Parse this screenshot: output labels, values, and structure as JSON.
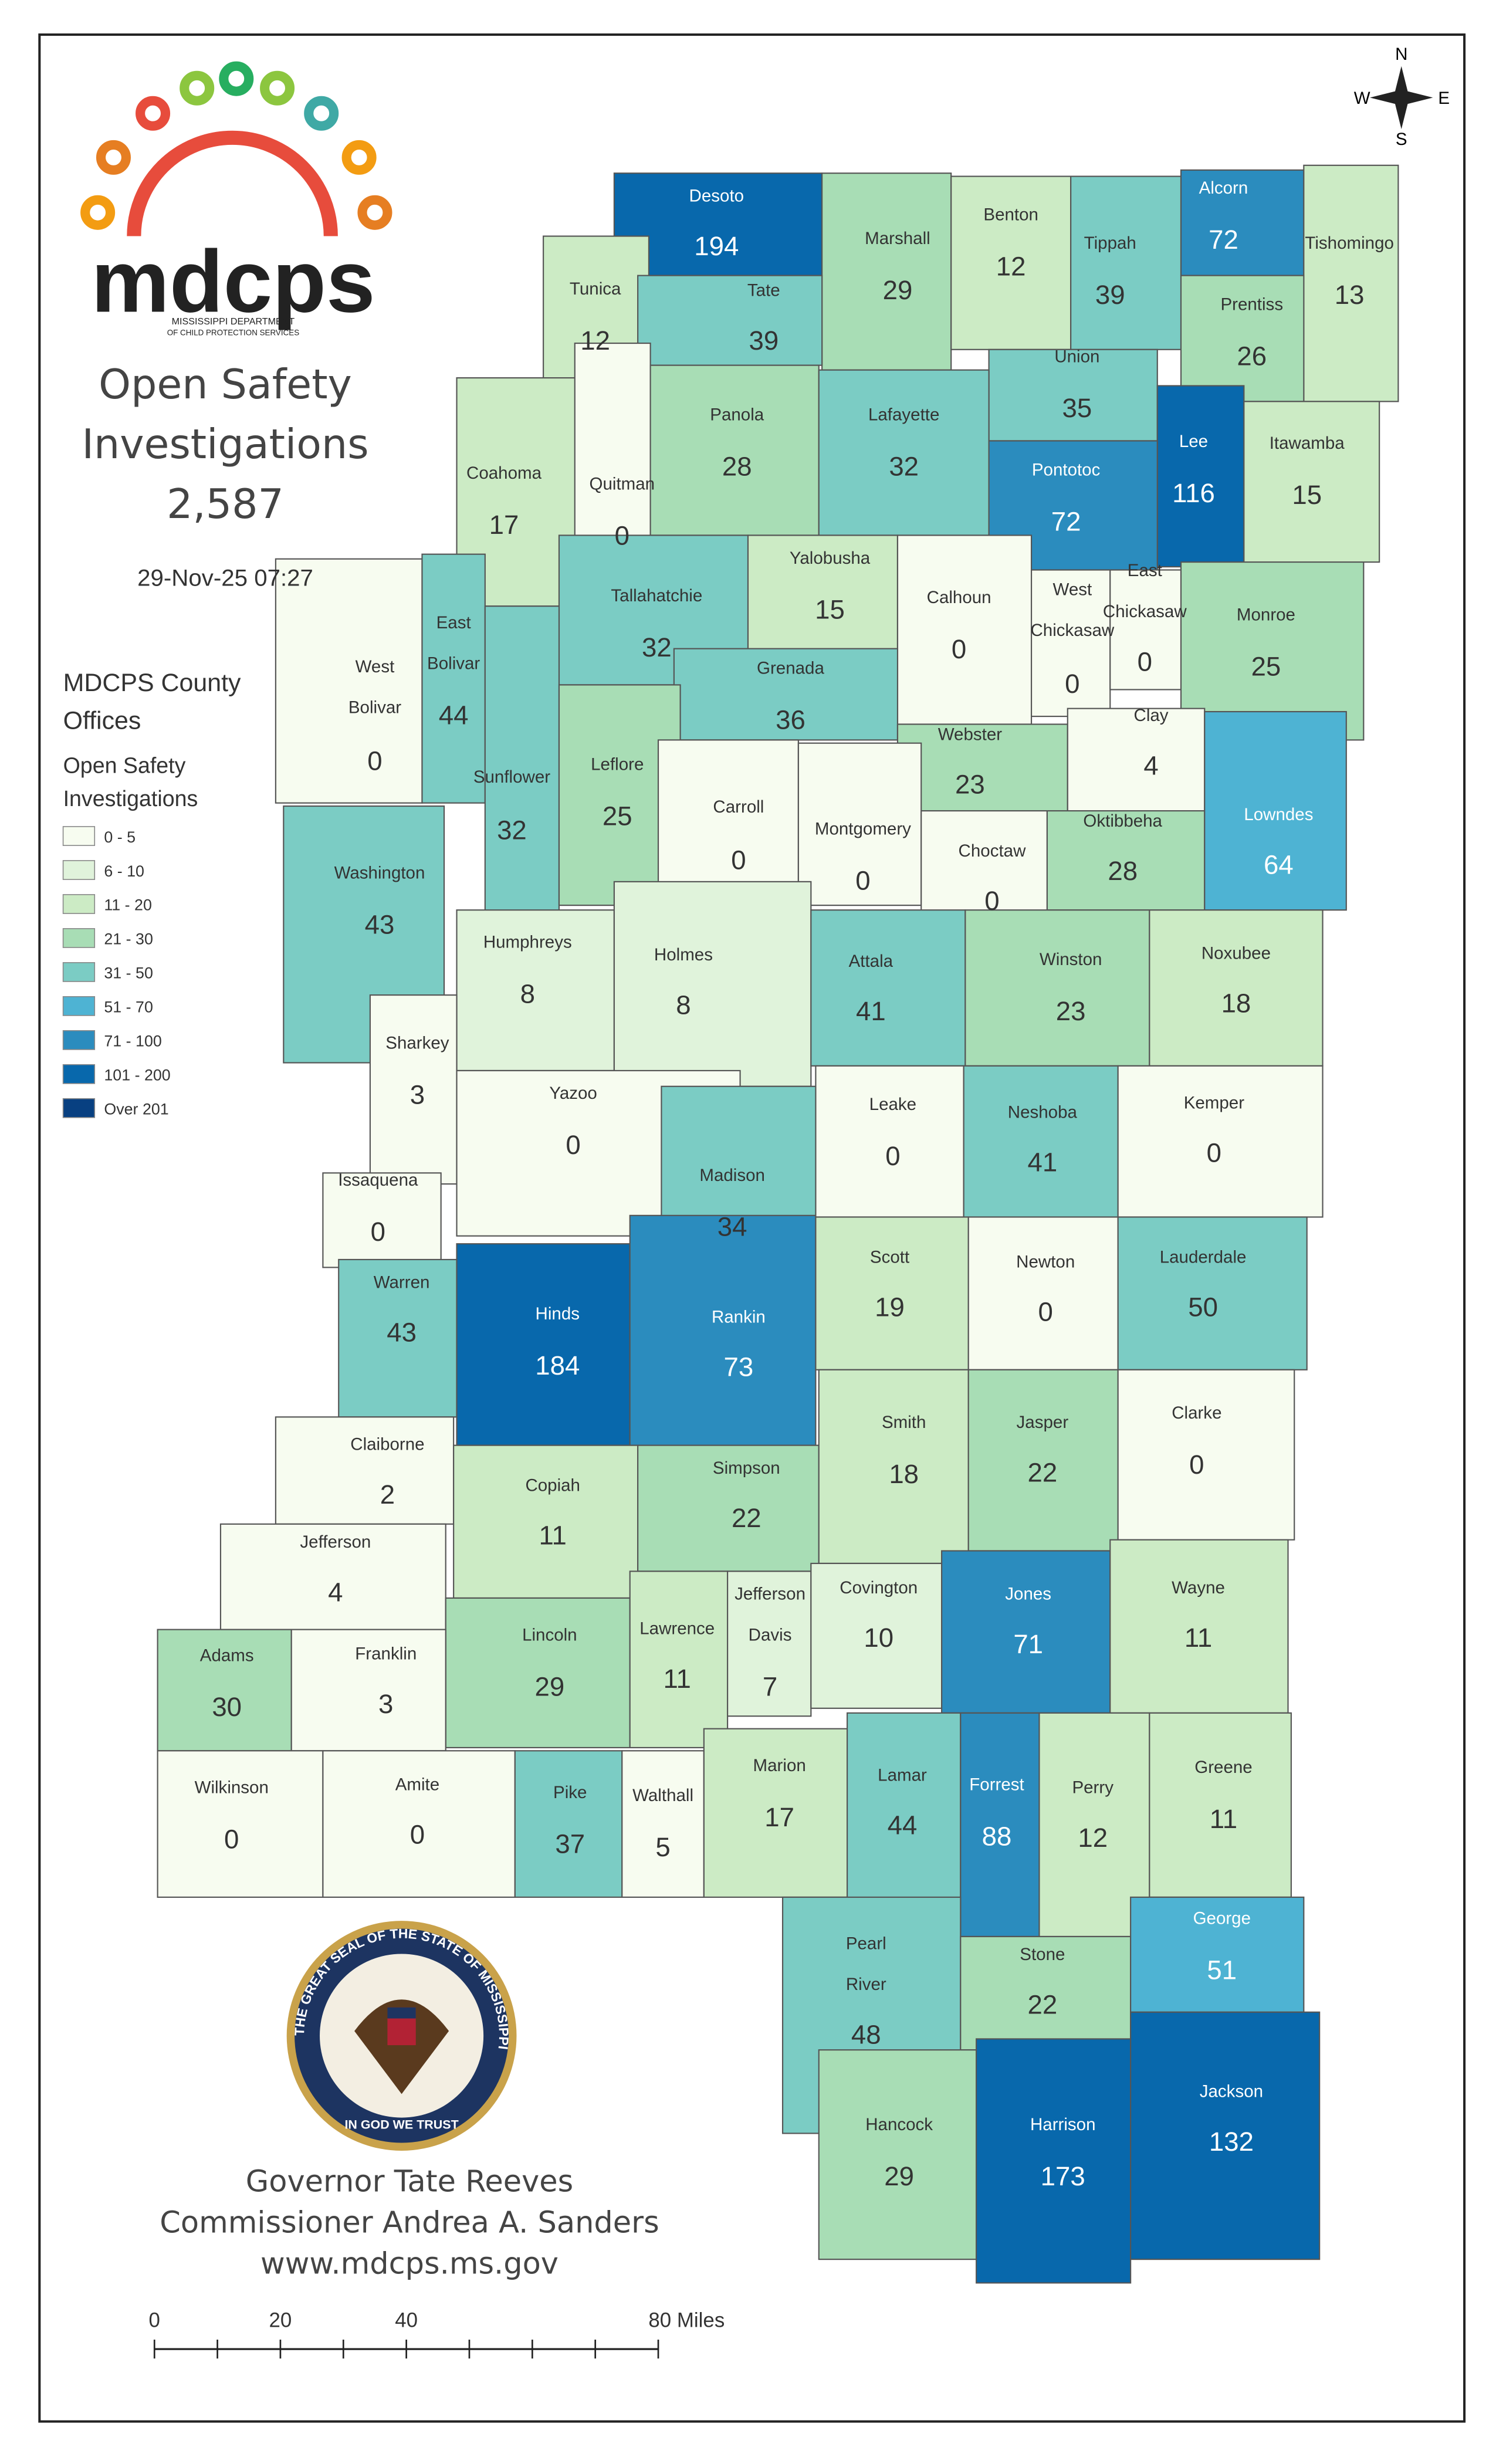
{
  "header": {
    "logo_text": "mdcps",
    "logo_sub": [
      "MISSISSIPPI DEPARTMENT",
      "OF CHILD PROTECTION SERVICES"
    ],
    "title_lines": [
      "Open Safety",
      "Investigations"
    ],
    "total": "2,587",
    "timestamp": "29-Nov-25 07:27"
  },
  "legend": {
    "heading_lines": [
      "MDCPS County",
      "Offices"
    ],
    "subheading_lines": [
      "Open Safety",
      "Investigations"
    ],
    "items": [
      {
        "label": "0 - 5",
        "color": "#f7fcf0"
      },
      {
        "label": "6 - 10",
        "color": "#e0f3db"
      },
      {
        "label": "11 - 20",
        "color": "#ccebc5"
      },
      {
        "label": "21 - 30",
        "color": "#a8ddb5"
      },
      {
        "label": "31 - 50",
        "color": "#7bccc4"
      },
      {
        "label": "51 - 70",
        "color": "#4eb3d3"
      },
      {
        "label": "71 - 100",
        "color": "#2b8cbe"
      },
      {
        "label": "101 - 200",
        "color": "#0868ac"
      },
      {
        "label": "Over 201",
        "color": "#084081"
      }
    ]
  },
  "compass": {
    "n": "N",
    "e": "E",
    "s": "S",
    "w": "W"
  },
  "counties": [
    {
      "name": [
        "Desoto"
      ],
      "count": 194
    },
    {
      "name": [
        "Tunica"
      ],
      "count": 12
    },
    {
      "name": [
        "Marshall"
      ],
      "count": 29
    },
    {
      "name": [
        "Benton"
      ],
      "count": 12
    },
    {
      "name": [
        "Tippah"
      ],
      "count": 39
    },
    {
      "name": [
        "Alcorn"
      ],
      "count": 72
    },
    {
      "name": [
        "Tishomingo"
      ],
      "count": 13
    },
    {
      "name": [
        "Tate"
      ],
      "count": 39
    },
    {
      "name": [
        "Prentiss"
      ],
      "count": 26
    },
    {
      "name": [
        "Union"
      ],
      "count": 35
    },
    {
      "name": [
        "Coahoma"
      ],
      "count": 17
    },
    {
      "name": [
        "Quitman"
      ],
      "count": 0
    },
    {
      "name": [
        "Panola"
      ],
      "count": 28
    },
    {
      "name": [
        "Lafayette"
      ],
      "count": 32
    },
    {
      "name": [
        "Lee"
      ],
      "count": 116
    },
    {
      "name": [
        "Itawamba"
      ],
      "count": 15
    },
    {
      "name": [
        "Pontotoc"
      ],
      "count": 72
    },
    {
      "name": [
        "Tallahatchie"
      ],
      "count": 32
    },
    {
      "name": [
        "Yalobusha"
      ],
      "count": 15
    },
    {
      "name": [
        "Calhoun"
      ],
      "count": 0
    },
    {
      "name": [
        "West",
        "Chickasaw"
      ],
      "count": 0
    },
    {
      "name": [
        "East",
        "Chickasaw"
      ],
      "count": 0
    },
    {
      "name": [
        "Monroe"
      ],
      "count": 25
    },
    {
      "name": [
        "West",
        "Bolivar"
      ],
      "count": 0
    },
    {
      "name": [
        "East",
        "Bolivar"
      ],
      "count": 44
    },
    {
      "name": [
        "Sunflower"
      ],
      "count": 32
    },
    {
      "name": [
        "Grenada"
      ],
      "count": 36
    },
    {
      "name": [
        "Leflore"
      ],
      "count": 25
    },
    {
      "name": [
        "Webster"
      ],
      "count": 23
    },
    {
      "name": [
        "Clay"
      ],
      "count": 4
    },
    {
      "name": [
        "Carroll"
      ],
      "count": 0
    },
    {
      "name": [
        "Montgomery"
      ],
      "count": 0
    },
    {
      "name": [
        "Choctaw"
      ],
      "count": 0
    },
    {
      "name": [
        "Oktibbeha"
      ],
      "count": 28
    },
    {
      "name": [
        "Lowndes"
      ],
      "count": 64
    },
    {
      "name": [
        "Washington"
      ],
      "count": 43
    },
    {
      "name": [
        "Humphreys"
      ],
      "count": 8
    },
    {
      "name": [
        "Holmes"
      ],
      "count": 8
    },
    {
      "name": [
        "Attala"
      ],
      "count": 41
    },
    {
      "name": [
        "Winston"
      ],
      "count": 23
    },
    {
      "name": [
        "Noxubee"
      ],
      "count": 18
    },
    {
      "name": [
        "Sharkey"
      ],
      "count": 3
    },
    {
      "name": [
        "Yazoo"
      ],
      "count": 0
    },
    {
      "name": [
        "Leake"
      ],
      "count": 0
    },
    {
      "name": [
        "Neshoba"
      ],
      "count": 41
    },
    {
      "name": [
        "Kemper"
      ],
      "count": 0
    },
    {
      "name": [
        "Issaquena"
      ],
      "count": 0
    },
    {
      "name": [
        "Madison"
      ],
      "count": 34
    },
    {
      "name": [
        "Warren"
      ],
      "count": 43
    },
    {
      "name": [
        "Hinds"
      ],
      "count": 184
    },
    {
      "name": [
        "Rankin"
      ],
      "count": 73
    },
    {
      "name": [
        "Scott"
      ],
      "count": 19
    },
    {
      "name": [
        "Newton"
      ],
      "count": 0
    },
    {
      "name": [
        "Lauderdale"
      ],
      "count": 50
    },
    {
      "name": [
        "Claiborne"
      ],
      "count": 2
    },
    {
      "name": [
        "Copiah"
      ],
      "count": 11
    },
    {
      "name": [
        "Simpson"
      ],
      "count": 22
    },
    {
      "name": [
        "Smith"
      ],
      "count": 18
    },
    {
      "name": [
        "Jasper"
      ],
      "count": 22
    },
    {
      "name": [
        "Clarke"
      ],
      "count": 0
    },
    {
      "name": [
        "Jefferson"
      ],
      "count": 4
    },
    {
      "name": [
        "Lincoln"
      ],
      "count": 29
    },
    {
      "name": [
        "Lawrence"
      ],
      "count": 11
    },
    {
      "name": [
        "Jefferson",
        "Davis"
      ],
      "count": 7
    },
    {
      "name": [
        "Covington"
      ],
      "count": 10
    },
    {
      "name": [
        "Jones"
      ],
      "count": 71
    },
    {
      "name": [
        "Wayne"
      ],
      "count": 11
    },
    {
      "name": [
        "Adams"
      ],
      "count": 30
    },
    {
      "name": [
        "Franklin"
      ],
      "count": 3
    },
    {
      "name": [
        "Wilkinson"
      ],
      "count": 0
    },
    {
      "name": [
        "Amite"
      ],
      "count": 0
    },
    {
      "name": [
        "Pike"
      ],
      "count": 37
    },
    {
      "name": [
        "Walthall"
      ],
      "count": 5
    },
    {
      "name": [
        "Marion"
      ],
      "count": 17
    },
    {
      "name": [
        "Lamar"
      ],
      "count": 44
    },
    {
      "name": [
        "Forrest"
      ],
      "count": 88
    },
    {
      "name": [
        "Perry"
      ],
      "count": 12
    },
    {
      "name": [
        "Greene"
      ],
      "count": 11
    },
    {
      "name": [
        "Pearl",
        "River"
      ],
      "count": 48
    },
    {
      "name": [
        "Stone"
      ],
      "count": 22
    },
    {
      "name": [
        "George"
      ],
      "count": 51
    },
    {
      "name": [
        "Hancock"
      ],
      "count": 29
    },
    {
      "name": [
        "Harrison"
      ],
      "count": 173
    },
    {
      "name": [
        "Jackson"
      ],
      "count": 132
    }
  ],
  "seal": {
    "ring_text": "THE GREAT SEAL OF THE STATE OF MISSISSIPPI",
    "motto": "IN GOD WE TRUST"
  },
  "footer": {
    "lines": [
      "Governor Tate Reeves",
      "Commissioner Andrea A. Sanders",
      "www.mdcps.ms.gov"
    ]
  },
  "scale_bar": {
    "labels": [
      "0",
      "20",
      "40",
      "80 Miles"
    ]
  }
}
